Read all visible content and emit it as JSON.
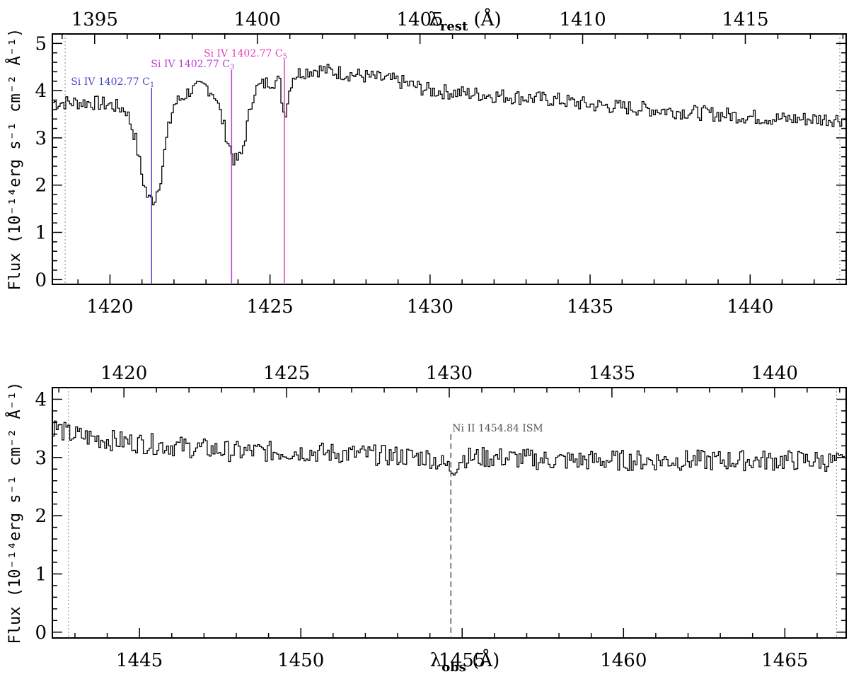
{
  "chart_data": [
    {
      "type": "line",
      "step": true,
      "xlabel_main": "λ",
      "xlabel_sub": "rest",
      "xlabel_unit": "(Å)",
      "ylabel": "Flux (10⁻¹⁴erg s⁻¹ cm⁻² Å⁻¹)",
      "x_obs_range": [
        1418.2,
        1443.0
      ],
      "x_rest_range": [
        1393.7,
        1418.1
      ],
      "ylim": [
        -0.1,
        5.2
      ],
      "bottom_ticks": [
        "1420",
        "1425",
        "1430",
        "1435",
        "1440"
      ],
      "top_ticks": [
        "1395",
        "1400",
        "1405",
        "1410",
        "1415"
      ],
      "y_ticks": [
        "0",
        "1",
        "2",
        "3",
        "4",
        "5"
      ],
      "dotted_markers_obs": [
        1418.6,
        1442.8
      ],
      "series": [
        {
          "x": [
            1418.2,
            1418.8,
            1419.4,
            1420.0,
            1420.5,
            1420.8,
            1421.0,
            1421.2,
            1421.4,
            1421.6,
            1421.8,
            1422.0,
            1422.5,
            1423.0,
            1423.3,
            1423.5,
            1423.7,
            1423.9,
            1424.1,
            1424.3,
            1424.5,
            1424.7,
            1425.0,
            1425.3,
            1425.45,
            1425.7,
            1426.0,
            1426.5,
            1427.0,
            1428.0,
            1429.0,
            1430.0,
            1431.0,
            1432.0,
            1433.0,
            1434.0,
            1435.0,
            1436.0,
            1437.0,
            1438.0,
            1439.0,
            1440.0,
            1441.0,
            1442.0,
            1443.0
          ],
          "y": [
            3.75,
            3.75,
            3.75,
            3.7,
            3.6,
            3.0,
            2.2,
            1.7,
            1.7,
            2.2,
            3.1,
            3.7,
            4.0,
            4.1,
            3.9,
            3.4,
            2.9,
            2.5,
            2.6,
            3.3,
            4.0,
            4.1,
            4.2,
            4.2,
            3.45,
            4.3,
            4.4,
            4.45,
            4.4,
            4.3,
            4.2,
            4.0,
            3.95,
            3.9,
            3.85,
            3.8,
            3.7,
            3.65,
            3.6,
            3.55,
            3.5,
            3.45,
            3.4,
            3.4,
            3.4
          ]
        }
      ],
      "annotations": [
        {
          "text": "Si IV 1402.77 C",
          "sub": "1",
          "x_obs": 1421.3,
          "color": "#4a48cc"
        },
        {
          "text": "Si IV 1402.77 C",
          "sub": "3",
          "x_obs": 1423.8,
          "color": "#b63fcf"
        },
        {
          "text": "Si IV 1402.77 C",
          "sub": "5",
          "x_obs": 1425.45,
          "color": "#e23fbd"
        }
      ]
    },
    {
      "type": "line",
      "step": true,
      "xlabel_main": "λ",
      "xlabel_sub": "obs",
      "xlabel_unit": "(Å)",
      "ylabel": "Flux (10⁻¹⁴erg s⁻¹ cm⁻² Å⁻¹)",
      "x_obs_range": [
        1442.3,
        1466.9
      ],
      "x_rest_range": [
        1417.8,
        1442.2
      ],
      "ylim": [
        -0.1,
        4.2
      ],
      "bottom_ticks": [
        "1445",
        "1450",
        "1455",
        "1460",
        "1465"
      ],
      "top_ticks": [
        "1420",
        "1425",
        "1430",
        "1435",
        "1440"
      ],
      "y_ticks": [
        "0",
        "1",
        "2",
        "3",
        "4"
      ],
      "dotted_markers_obs": [
        1442.8,
        1466.6
      ],
      "series": [
        {
          "x": [
            1442.3,
            1442.8,
            1444.0,
            1446.0,
            1448.0,
            1450.0,
            1452.0,
            1454.0,
            1454.7,
            1455.0,
            1456.0,
            1458.0,
            1460.0,
            1462.0,
            1464.0,
            1466.0,
            1466.9
          ],
          "y": [
            3.55,
            3.4,
            3.3,
            3.2,
            3.1,
            3.1,
            3.05,
            3.0,
            2.8,
            3.0,
            3.0,
            2.95,
            2.95,
            2.95,
            2.95,
            2.95,
            2.9
          ]
        }
      ],
      "annotations": [
        {
          "text": "Ni II 1454.84 ISM",
          "x_obs": 1454.65,
          "color": "#555555",
          "dashed": true
        }
      ]
    }
  ]
}
